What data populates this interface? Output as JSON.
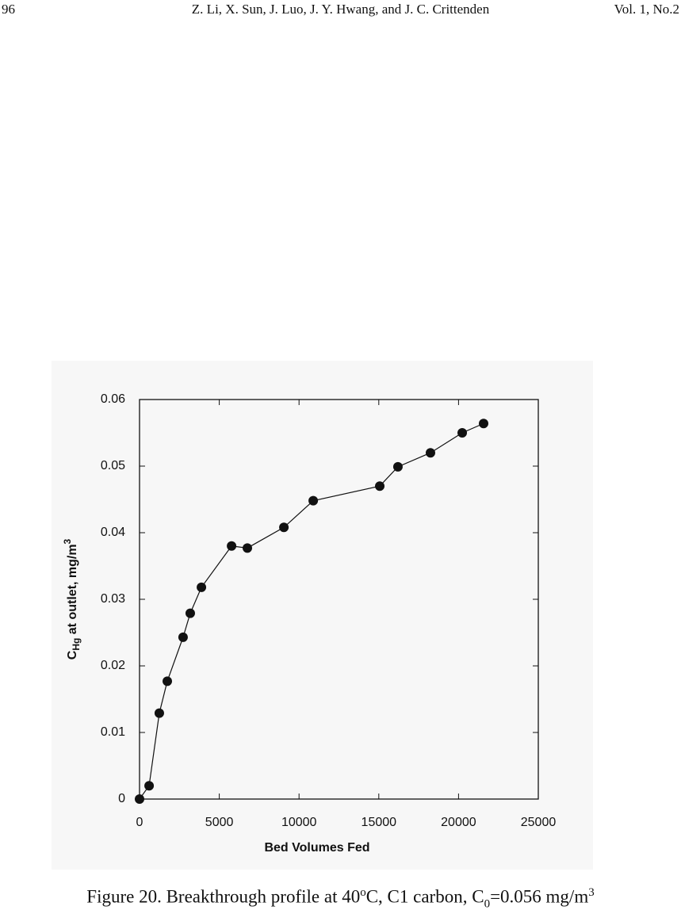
{
  "header": {
    "page_number": "96",
    "authors": "Z. Li, X. Sun, J. Luo,  J. Y. Hwang, and J. C. Crittenden",
    "volume": "Vol. 1, No.2"
  },
  "chart_data": {
    "type": "line",
    "x_label": "Bed Volumes Fed",
    "y_label_parts": [
      "C",
      "Hg",
      " at outlet, mg/m",
      "3"
    ],
    "x": [
      0,
      600,
      1240,
      1740,
      2730,
      3180,
      3880,
      5770,
      6760,
      9050,
      10890,
      15060,
      16200,
      18240,
      20230,
      21570
    ],
    "values": [
      0,
      0.002,
      0.0129,
      0.0177,
      0.0243,
      0.0279,
      0.0318,
      0.038,
      0.0377,
      0.0408,
      0.0448,
      0.047,
      0.0499,
      0.052,
      0.055,
      0.0564
    ],
    "color": "#111111",
    "xlim": [
      0,
      25000
    ],
    "xticks": [
      0,
      5000,
      10000,
      15000,
      20000,
      25000
    ],
    "ylim": [
      0,
      0.06
    ],
    "yticks": [
      0,
      0.01,
      0.02,
      0.03,
      0.04,
      0.05,
      0.06
    ]
  },
  "caption": {
    "parts": [
      "Figure 20. Breakthrough profile at 40",
      "o",
      "C, C1 carbon, C",
      "0",
      "=0.056 mg/m",
      "3"
    ]
  }
}
